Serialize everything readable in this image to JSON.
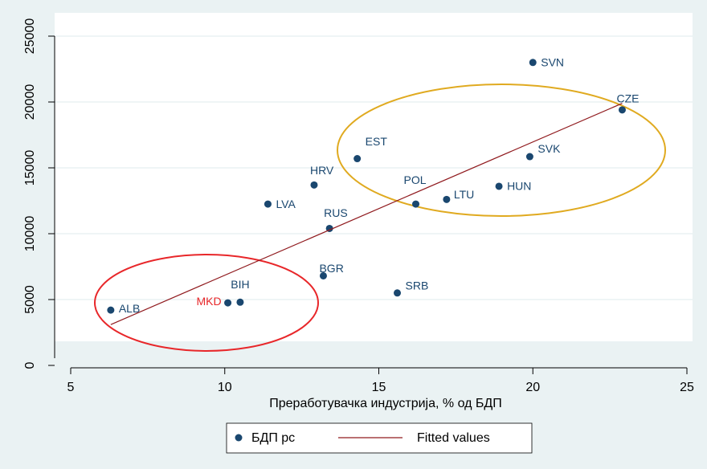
{
  "chart_data": {
    "type": "scatter",
    "xlabel": "Преработувачка индустрија, % од БДП",
    "xlim": [
      5,
      25
    ],
    "xticks": [
      5,
      10,
      15,
      20,
      25
    ],
    "ylim": [
      0,
      25000
    ],
    "yticks": [
      0,
      5000,
      10000,
      15000,
      20000,
      25000
    ],
    "grid": true,
    "series": [
      {
        "name": "БДП pc",
        "color": "#1a476f",
        "labels": [
          "ALB",
          "MKD",
          "BIH",
          "BGR",
          "SRB",
          "LVA",
          "HRV",
          "RUS",
          "EST",
          "POL",
          "LTU",
          "HUN",
          "SVK",
          "SVN",
          "CZE"
        ],
        "label_colors": [
          "#1a476f",
          "#e8272a",
          "#1a476f",
          "#1a476f",
          "#1a476f",
          "#1a476f",
          "#1a476f",
          "#1a476f",
          "#1a476f",
          "#1a476f",
          "#1a476f",
          "#1a476f",
          "#1a476f",
          "#1a476f",
          "#1a476f"
        ],
        "x": [
          6.3,
          10.1,
          10.5,
          13.2,
          15.6,
          11.4,
          12.9,
          13.4,
          14.3,
          16.2,
          17.2,
          18.9,
          19.9,
          20.0,
          22.9
        ],
        "values": [
          4200,
          4750,
          4800,
          6800,
          5500,
          12250,
          13700,
          10400,
          15700,
          12250,
          12600,
          13600,
          15850,
          23000,
          19400
        ]
      },
      {
        "name": "Fitted values",
        "color": "#901a1e",
        "type": "line",
        "x": [
          6.3,
          22.9
        ],
        "values": [
          3100,
          19900
        ]
      }
    ],
    "legend": "bottom"
  }
}
